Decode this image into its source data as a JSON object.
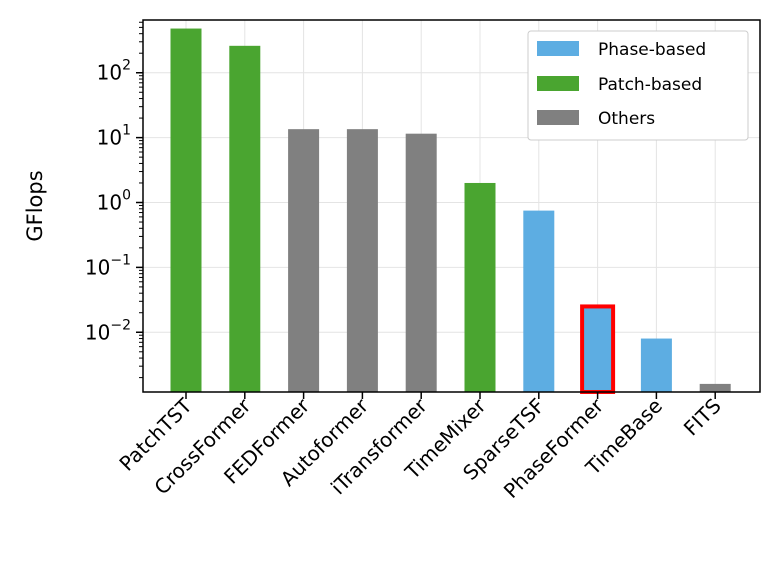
{
  "chart_data": {
    "type": "bar",
    "title": "",
    "xlabel": "",
    "ylabel": "GFlops",
    "yscale": "log",
    "ylim": [
      0.0012,
      650
    ],
    "grid": true,
    "legend_position": "top-right",
    "categories": [
      "PatchTST",
      "CrossFormer",
      "FEDFormer",
      "Autoformer",
      "iTransformer",
      "TimeMixer",
      "SparseTSF",
      "PhaseFormer",
      "TimeBase",
      "FITS"
    ],
    "values": [
      480,
      260,
      13.5,
      13.5,
      11.5,
      2.0,
      0.75,
      0.025,
      0.008,
      0.0016
    ],
    "groups": [
      "Patch-based",
      "Patch-based",
      "Others",
      "Others",
      "Others",
      "Patch-based",
      "Phase-based",
      "Phase-based",
      "Phase-based",
      "Others"
    ],
    "highlight": "PhaseFormer",
    "highlight_color": "#ff0000",
    "legend": [
      {
        "label": "Phase-based",
        "color": "#5dade2"
      },
      {
        "label": "Patch-based",
        "color": "#4aa530"
      },
      {
        "label": "Others",
        "color": "#808080"
      }
    ],
    "yticks": [
      {
        "value": 100,
        "base": "10",
        "exp": "2"
      },
      {
        "value": 10,
        "base": "10",
        "exp": "1"
      },
      {
        "value": 1,
        "base": "10",
        "exp": "0"
      },
      {
        "value": 0.1,
        "base": "10",
        "exp": "−1"
      },
      {
        "value": 0.01,
        "base": "10",
        "exp": "−2"
      }
    ]
  }
}
